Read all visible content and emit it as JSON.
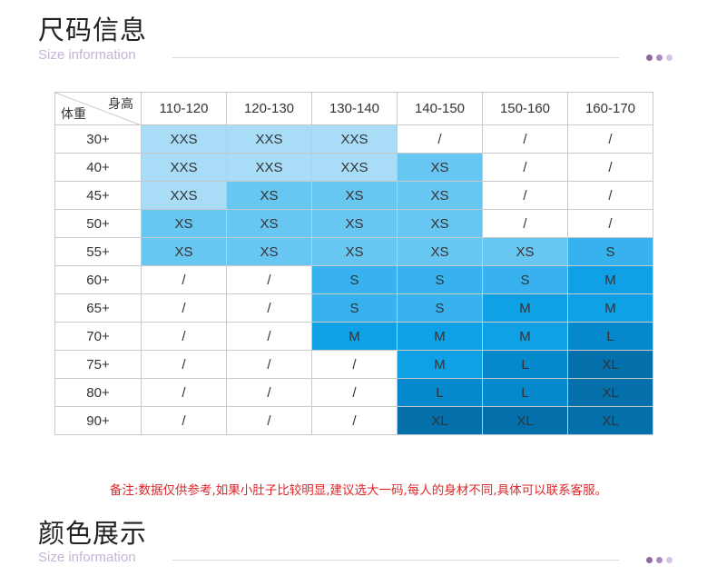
{
  "size_section": {
    "title": "尺码信息",
    "subtitle": "Size information",
    "corner_top": "身高",
    "corner_bottom": "体重",
    "columns": [
      "110-120",
      "120-130",
      "130-140",
      "140-150",
      "150-160",
      "160-170"
    ],
    "rows": [
      {
        "weight": "30+",
        "cells": [
          "XXS",
          "XXS",
          "XXS",
          "/",
          "/",
          "/"
        ]
      },
      {
        "weight": "40+",
        "cells": [
          "XXS",
          "XXS",
          "XXS",
          "XS",
          "/",
          "/"
        ]
      },
      {
        "weight": "45+",
        "cells": [
          "XXS",
          "XS",
          "XS",
          "XS",
          "/",
          "/"
        ]
      },
      {
        "weight": "50+",
        "cells": [
          "XS",
          "XS",
          "XS",
          "XS",
          "/",
          "/"
        ]
      },
      {
        "weight": "55+",
        "cells": [
          "XS",
          "XS",
          "XS",
          "XS",
          "XS",
          "S"
        ]
      },
      {
        "weight": "60+",
        "cells": [
          "/",
          "/",
          "S",
          "S",
          "S",
          "M"
        ]
      },
      {
        "weight": "65+",
        "cells": [
          "/",
          "/",
          "S",
          "S",
          "M",
          "M"
        ]
      },
      {
        "weight": "70+",
        "cells": [
          "/",
          "/",
          "M",
          "M",
          "M",
          "L"
        ]
      },
      {
        "weight": "75+",
        "cells": [
          "/",
          "/",
          "/",
          "M",
          "L",
          "XL"
        ]
      },
      {
        "weight": "80+",
        "cells": [
          "/",
          "/",
          "/",
          "L",
          "L",
          "XL"
        ]
      },
      {
        "weight": "90+",
        "cells": [
          "/",
          "/",
          "/",
          "XL",
          "XL",
          "XL"
        ]
      }
    ]
  },
  "cell_colors": {
    "XXS": "#a9dcf7",
    "XS": "#68c6f2",
    "S": "#38b2ee",
    "M": "#0fa0e5",
    "L": "#0588cc",
    "XL": "#036fab",
    "/": "#ffffff"
  },
  "note": "备注:数据仅供参考,如果小肚子比较明显,建议选大一码,每人的身材不同,具体可以联系客服。",
  "color_section": {
    "title": "颜色展示",
    "subtitle": "Size information"
  }
}
